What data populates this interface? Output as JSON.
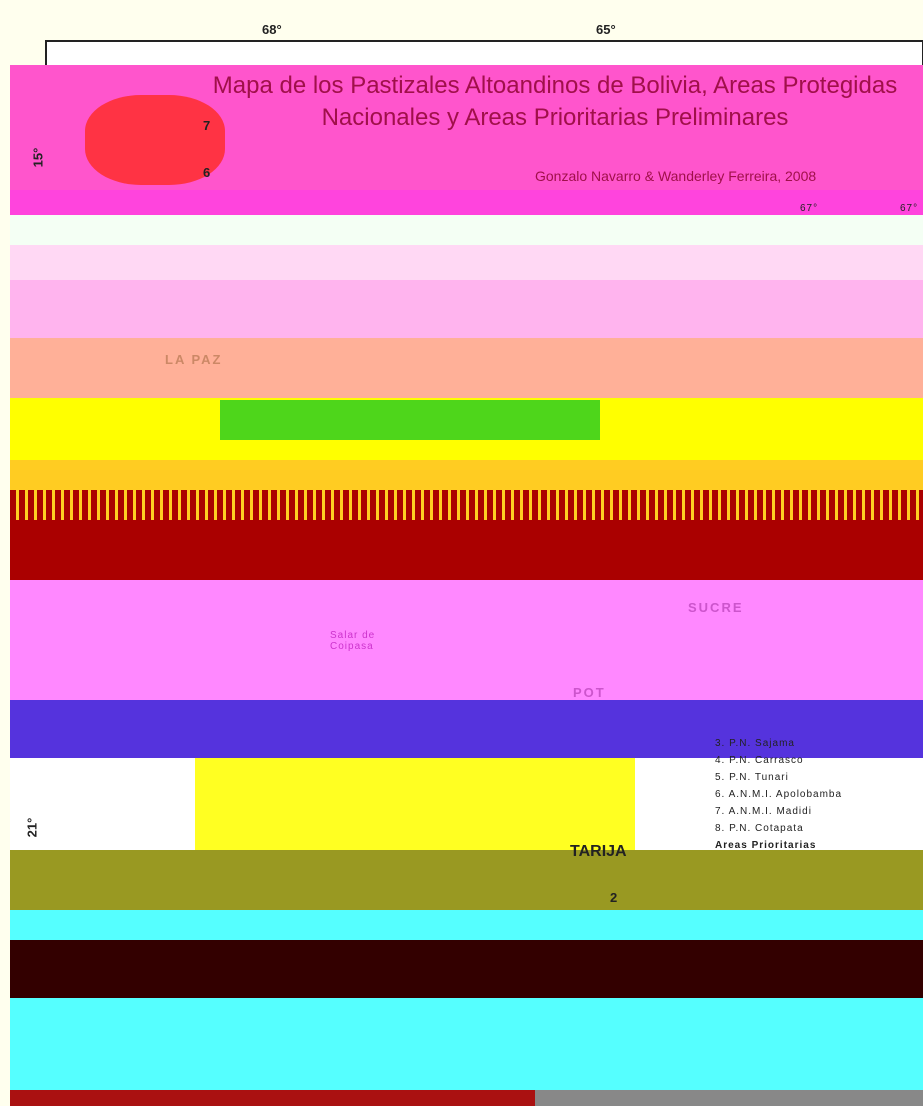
{
  "map": {
    "title": "Mapa de los Pastizales Altoandinos de Bolivia, Areas Protegidas Nacionales y Areas Prioritarias Preliminares",
    "author": "Gonzalo Navarro & Wanderley Ferreira, 2008",
    "longitudes": [
      "68°",
      "65°"
    ],
    "latitudes": [
      "15°",
      "21°"
    ],
    "inset_longitudes": [
      "67°",
      "67°"
    ],
    "places": [
      "LA PAZ",
      "SUCRE",
      "POT",
      "Salar de Coipasa",
      "TARIJA"
    ],
    "area_numbers": [
      "7",
      "6",
      "2"
    ],
    "legend": [
      "3. P.N. Sajama",
      "4. P.N. Carrasco",
      "5. P.N. Tunari",
      "6. A.N.M.I. Apolobamba",
      "7. A.N.M.I. Madidi",
      "8. P.N. Cotapata",
      "Areas Prioritarias"
    ]
  }
}
